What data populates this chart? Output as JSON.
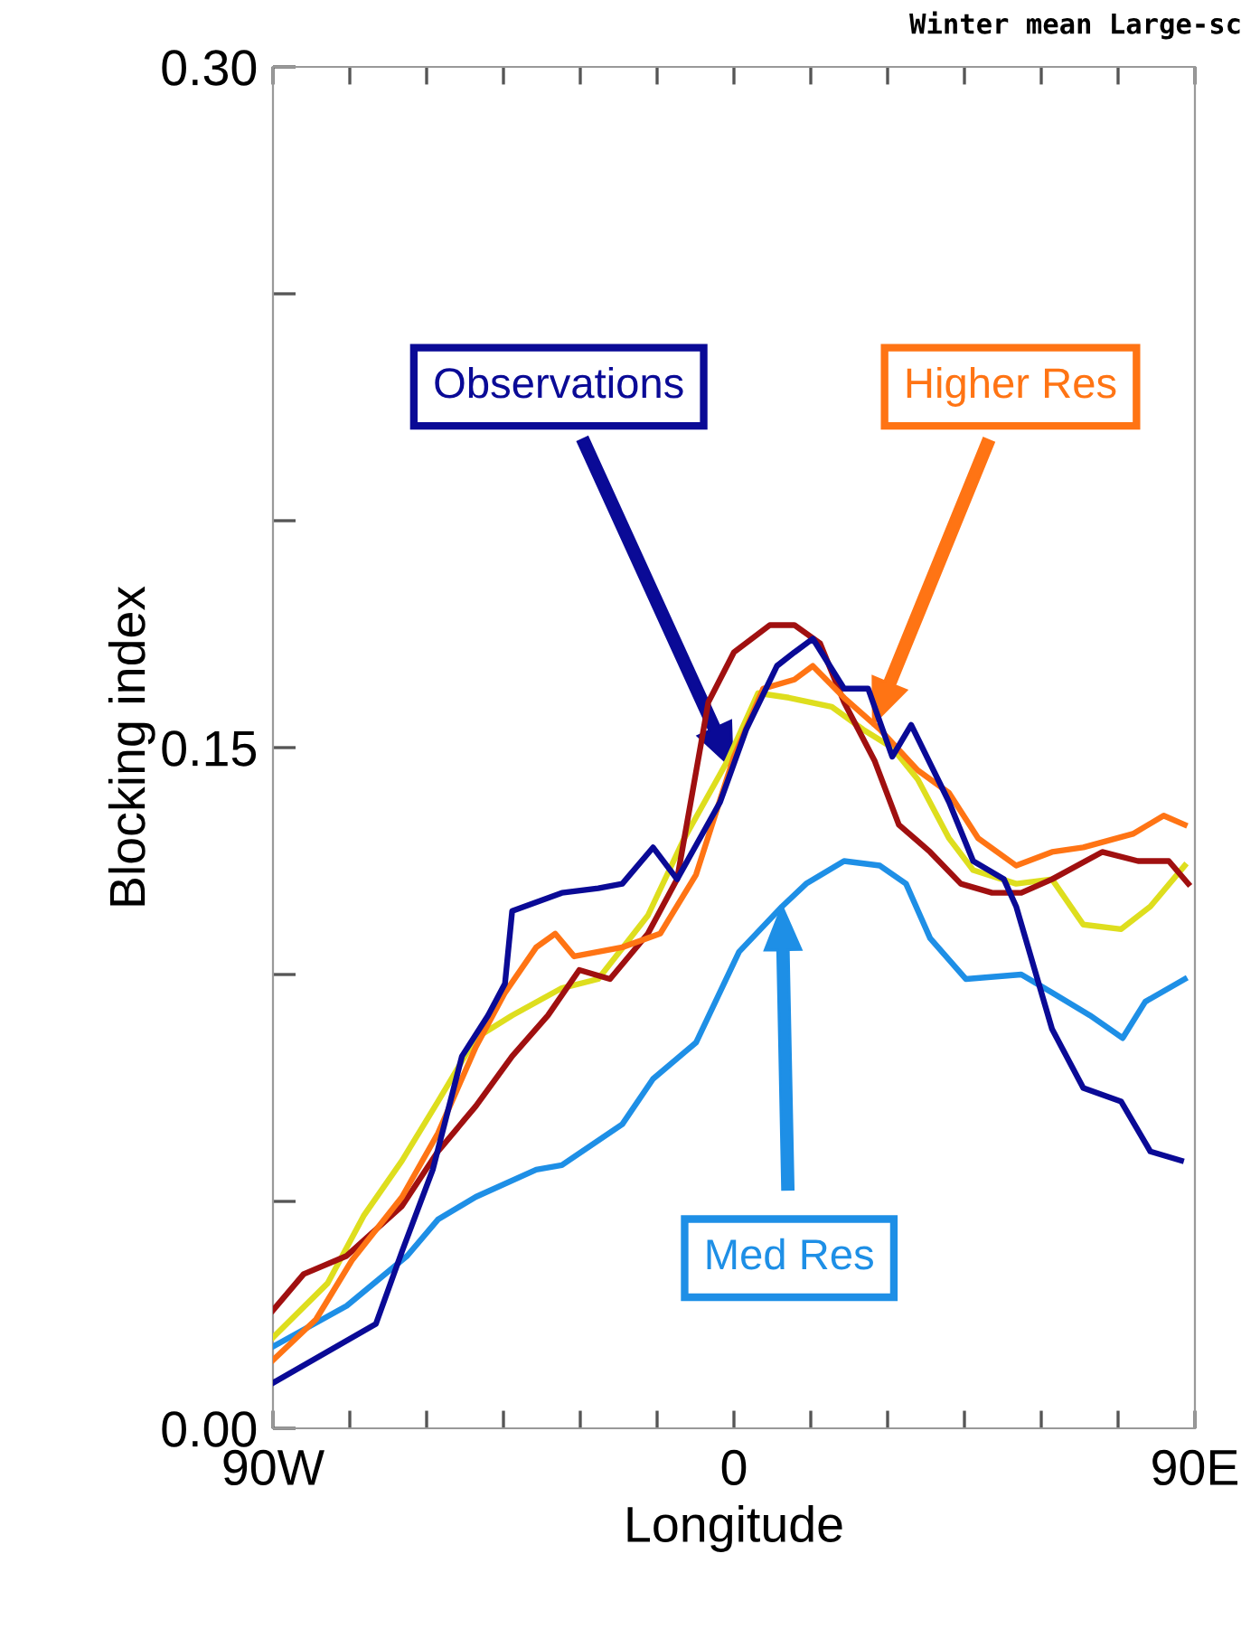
{
  "chart_data": {
    "type": "line",
    "title": "Winter mean Large-sc",
    "xlabel": "Longitude",
    "ylabel": "Blocking index",
    "xlim": [
      -90,
      90
    ],
    "ylim": [
      0,
      0.3
    ],
    "xticks": [
      {
        "value": -90,
        "label": "90W"
      },
      {
        "value": -75,
        "label": null
      },
      {
        "value": -60,
        "label": null
      },
      {
        "value": -45,
        "label": null
      },
      {
        "value": -30,
        "label": null
      },
      {
        "value": -15,
        "label": null
      },
      {
        "value": 0,
        "label": "0"
      },
      {
        "value": 15,
        "label": null
      },
      {
        "value": 30,
        "label": null
      },
      {
        "value": 45,
        "label": null
      },
      {
        "value": 60,
        "label": null
      },
      {
        "value": 75,
        "label": null
      },
      {
        "value": 90,
        "label": "90E"
      }
    ],
    "yticks": [
      {
        "value": 0,
        "label": "0.00"
      },
      {
        "value": 0.05,
        "label": null
      },
      {
        "value": 0.1,
        "label": null
      },
      {
        "value": 0.15,
        "label": "0.15"
      },
      {
        "value": 0.2,
        "label": null
      },
      {
        "value": 0.25,
        "label": null
      },
      {
        "value": 0.3,
        "label": "0.30"
      }
    ],
    "grid": false,
    "legend": false,
    "marker": "none",
    "line_style": "solid",
    "series": [
      {
        "color": "#dede1e",
        "x": [
          -90,
          -79.3,
          -72.2,
          -64.8,
          -57.8,
          -50.4,
          -43.3,
          -33.6,
          -26.5,
          -16.8,
          -9.7,
          -1.3,
          4.7,
          10.7,
          19.1,
          25.2,
          30.9,
          35.9,
          42.0,
          46.7,
          55.1,
          62.1,
          68.2,
          75.6,
          81.3,
          88.0
        ],
        "values": [
          0.02,
          0.032,
          0.047,
          0.059,
          0.072,
          0.086,
          0.091,
          0.097,
          0.099,
          0.113,
          0.13,
          0.147,
          0.162,
          0.161,
          0.159,
          0.154,
          0.15,
          0.143,
          0.13,
          0.123,
          0.12,
          0.121,
          0.111,
          0.11,
          0.115,
          0.124
        ]
      },
      {
        "color": "#a01010",
        "x": [
          -90,
          -84.0,
          -75.6,
          -64.8,
          -57.8,
          -50.4,
          -43.3,
          -36.3,
          -30.2,
          -24.2,
          -16.8,
          -11.1,
          -5.0,
          0.0,
          7.0,
          11.8,
          16.8,
          21.5,
          27.5,
          32.2,
          38.3,
          44.3,
          50.4,
          56.1,
          62.1,
          71.9,
          78.9,
          84.9,
          88.7
        ],
        "values": [
          0.026,
          0.034,
          0.038,
          0.049,
          0.061,
          0.071,
          0.082,
          0.091,
          0.101,
          0.099,
          0.109,
          0.121,
          0.16,
          0.171,
          0.177,
          0.177,
          0.173,
          0.16,
          0.147,
          0.133,
          0.127,
          0.12,
          0.118,
          0.118,
          0.121,
          0.127,
          0.125,
          0.125,
          0.12
        ]
      },
      {
        "name": "Med Res",
        "color": "#1e8fe6",
        "x": [
          -90,
          -75.6,
          -63.8,
          -57.8,
          -50.4,
          -38.6,
          -33.6,
          -21.8,
          -15.8,
          -7.4,
          1.0,
          9.4,
          14.1,
          21.5,
          28.5,
          33.6,
          38.3,
          45.3,
          56.1,
          62.1,
          69.5,
          75.9,
          80.3,
          88.0
        ],
        "values": [
          0.018,
          0.027,
          0.038,
          0.046,
          0.051,
          0.057,
          0.058,
          0.067,
          0.077,
          0.085,
          0.105,
          0.115,
          0.12,
          0.125,
          0.124,
          0.12,
          0.108,
          0.099,
          0.1,
          0.096,
          0.091,
          0.086,
          0.094,
          0.099
        ]
      },
      {
        "name": "Higher Res",
        "color": "#ff7414",
        "x": [
          -90,
          -81.6,
          -74.6,
          -64.8,
          -57.8,
          -50.4,
          -44.7,
          -38.6,
          -34.9,
          -31.2,
          -21.8,
          -14.4,
          -7.4,
          0.0,
          5.7,
          11.8,
          15.4,
          21.5,
          28.5,
          35.9,
          42.0,
          47.7,
          55.1,
          62.1,
          68.2,
          77.9,
          83.9,
          88.0
        ],
        "values": [
          0.015,
          0.024,
          0.037,
          0.051,
          0.065,
          0.084,
          0.096,
          0.106,
          0.109,
          0.104,
          0.106,
          0.109,
          0.122,
          0.148,
          0.163,
          0.165,
          0.168,
          0.161,
          0.154,
          0.145,
          0.14,
          0.13,
          0.124,
          0.127,
          0.128,
          0.131,
          0.135,
          0.133
        ]
      },
      {
        "name": "Observations",
        "color": "#0a0a96",
        "x": [
          -90,
          -69.9,
          -64.8,
          -58.8,
          -53.1,
          -48.0,
          -44.7,
          -43.3,
          -33.6,
          -26.5,
          -21.8,
          -15.8,
          -11.1,
          -2.7,
          2.4,
          8.4,
          11.8,
          15.4,
          21.5,
          26.2,
          30.9,
          34.6,
          42.0,
          46.7,
          52.7,
          55.1,
          62.1,
          68.2,
          75.6,
          81.3,
          87.3
        ],
        "values": [
          0.01,
          0.023,
          0.039,
          0.057,
          0.082,
          0.091,
          0.098,
          0.114,
          0.118,
          0.119,
          0.12,
          0.128,
          0.121,
          0.138,
          0.154,
          0.168,
          0.171,
          0.174,
          0.163,
          0.163,
          0.148,
          0.155,
          0.138,
          0.125,
          0.121,
          0.115,
          0.088,
          0.075,
          0.072,
          0.061,
          0.059
        ]
      }
    ]
  }
}
